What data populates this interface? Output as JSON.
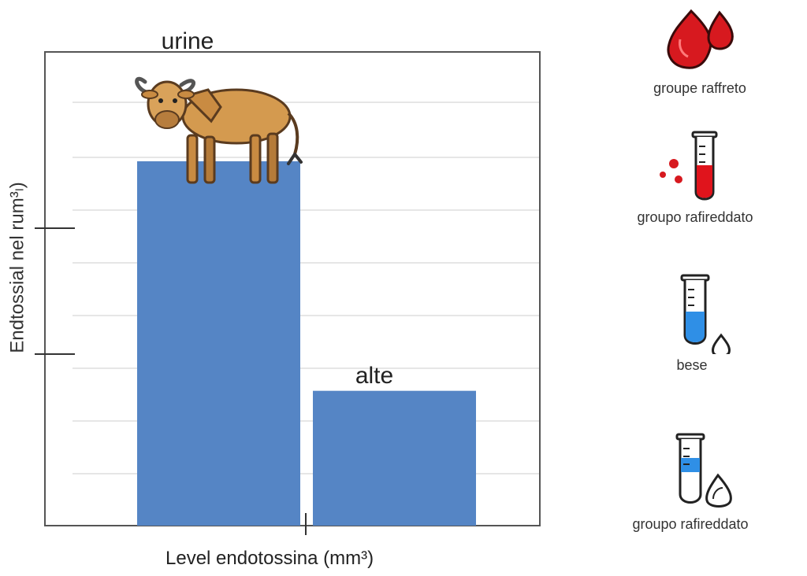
{
  "chart_data": {
    "type": "bar",
    "categories": [
      "urine",
      "alte"
    ],
    "values": [
      100,
      37
    ],
    "ylim": [
      0,
      130
    ],
    "xlabel": "Level endotossina (mm³)",
    "ylabel": "Endtossial nel rum³ₗ)",
    "grid": true,
    "legend_position": "right",
    "colors": {
      "bar": "#5585c5",
      "grid": "#dddddd",
      "axis": "#555555"
    },
    "bar_icons": [
      {
        "category": "urine",
        "icon": "bull-icon"
      }
    ]
  },
  "legend": [
    {
      "label": "groupe raffreto",
      "icon": "blood-drops-icon"
    },
    {
      "label": "groupo rafireddato",
      "icon": "red-test-tube-icon"
    },
    {
      "label": "bese",
      "icon": "blue-test-tube-icon"
    },
    {
      "label": "groupo rafireddato",
      "icon": "low-blue-test-tube-icon"
    }
  ]
}
